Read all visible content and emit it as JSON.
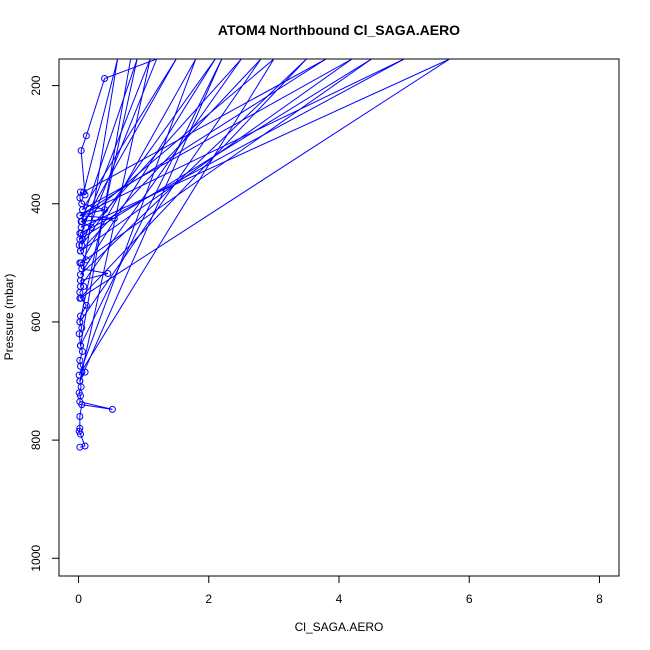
{
  "chart_data": {
    "type": "line",
    "title": "ATOM4 Northbound Cl_SAGA.AERO",
    "xlabel": "Cl_SAGA.AERO",
    "ylabel": "Pressure (mbar)",
    "xlim": [
      -0.3,
      8.3
    ],
    "ylim": [
      1030,
      155
    ],
    "y_inverted": true,
    "x_ticks": [
      0,
      2,
      4,
      6,
      8
    ],
    "y_ticks": [
      200,
      400,
      600,
      800,
      1000
    ],
    "grid": false,
    "series_color": "#0000ff",
    "marker": "open-circle",
    "series": [
      {
        "points": [
          [
            0.02,
            812
          ],
          [
            0.1,
            810
          ],
          [
            0.03,
            790
          ],
          [
            0.01,
            785
          ],
          [
            0.02,
            780
          ],
          [
            0.02,
            760
          ],
          [
            0.05,
            740
          ],
          [
            0.52,
            748
          ],
          [
            0.02,
            735
          ],
          [
            0.03,
            725
          ],
          [
            0.01,
            720
          ],
          [
            0.04,
            710
          ],
          [
            0.02,
            700
          ],
          [
            0.1,
            685
          ],
          [
            0.03,
            675
          ],
          [
            0.02,
            665
          ],
          [
            0.06,
            650
          ],
          [
            0.03,
            640
          ],
          [
            0.01,
            620
          ],
          [
            0.05,
            610
          ],
          [
            0.02,
            600
          ],
          [
            0.03,
            590
          ],
          [
            0.12,
            572
          ],
          [
            0.04,
            560
          ],
          [
            0.02,
            550
          ],
          [
            0.08,
            540
          ],
          [
            0.03,
            530
          ],
          [
            0.45,
            518
          ],
          [
            0.05,
            510
          ],
          [
            0.02,
            500
          ],
          [
            0.12,
            495
          ],
          [
            0.03,
            480
          ],
          [
            0.01,
            470
          ],
          [
            0.06,
            460
          ],
          [
            0.02,
            450
          ],
          [
            0.2,
            440
          ],
          [
            0.04,
            430
          ],
          [
            0.55,
            425
          ],
          [
            0.02,
            420
          ],
          [
            0.4,
            410
          ],
          [
            0.05,
            400
          ],
          [
            0.02,
            390
          ],
          [
            0.03,
            380
          ],
          [
            0.1,
            385
          ],
          [
            0.04,
            310
          ],
          [
            0.12,
            285
          ],
          [
            0.4,
            188
          ],
          [
            1.2,
            155
          ],
          [
            0.05,
            470
          ],
          [
            2.1,
            155
          ],
          [
            0.03,
            520
          ],
          [
            3.5,
            155
          ],
          [
            0.02,
            560
          ],
          [
            5.7,
            155
          ],
          [
            0.04,
            440
          ],
          [
            1.5,
            155
          ],
          [
            0.06,
            410
          ],
          [
            4.2,
            155
          ],
          [
            0.03,
            480
          ],
          [
            2.8,
            155
          ],
          [
            0.02,
            600
          ],
          [
            0.9,
            155
          ],
          [
            0.05,
            430
          ],
          [
            3.0,
            155
          ],
          [
            0.01,
            690
          ],
          [
            1.8,
            155
          ],
          [
            0.04,
            500
          ],
          [
            4.5,
            155
          ],
          [
            0.02,
            460
          ],
          [
            2.5,
            155
          ],
          [
            0.03,
            540
          ],
          [
            0.6,
            155
          ],
          [
            0.08,
            380
          ],
          [
            3.8,
            155
          ],
          [
            0.02,
            420
          ],
          [
            5.0,
            155
          ],
          [
            0.04,
            450
          ],
          [
            1.1,
            155
          ],
          [
            0.02,
            700
          ],
          [
            2.2,
            155
          ],
          [
            0.03,
            640
          ],
          [
            0.8,
            155
          ]
        ]
      }
    ]
  }
}
